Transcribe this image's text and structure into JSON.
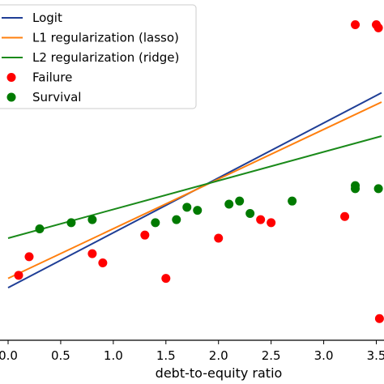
{
  "chart_data": {
    "type": "scatter",
    "xlabel": "debt-to-equity ratio",
    "ylabel": "",
    "xlim": [
      0.0,
      3.55
    ],
    "ylim": [
      -0.05,
      1.05
    ],
    "xticks": [
      "0.0",
      "0.5",
      "1.0",
      "1.5",
      "2.0",
      "2.5",
      "3.0",
      "3.5"
    ],
    "xtick_values": [
      0.0,
      0.5,
      1.0,
      1.5,
      2.0,
      2.5,
      3.0,
      3.5
    ],
    "grid": false,
    "legend_position": "top-left",
    "lines": [
      {
        "name": "Logit",
        "color": "#1f3e96",
        "x": [
          0.0,
          3.55
        ],
        "y": [
          0.12,
          0.75
        ]
      },
      {
        "name": "L1 regularization (lasso)",
        "color": "#ff7f0e",
        "x": [
          0.0,
          3.55
        ],
        "y": [
          0.15,
          0.72
        ]
      },
      {
        "name": "L2 regularization (ridge)",
        "color": "#1a8a1a",
        "x": [
          0.0,
          3.55
        ],
        "y": [
          0.28,
          0.61
        ]
      }
    ],
    "series": [
      {
        "name": "Failure",
        "color": "#ff0000",
        "x": [
          0.1,
          0.2,
          0.8,
          0.9,
          1.3,
          1.5,
          2.0,
          2.4,
          2.5,
          3.2,
          3.3,
          3.5,
          3.52,
          3.53
        ],
        "y": [
          0.16,
          0.22,
          0.23,
          0.2,
          0.29,
          0.15,
          0.28,
          0.34,
          0.33,
          0.35,
          0.97,
          0.97,
          0.96,
          0.02
        ]
      },
      {
        "name": "Survival",
        "color": "#007a00",
        "x": [
          0.3,
          0.6,
          0.8,
          1.4,
          1.6,
          1.7,
          1.8,
          2.1,
          2.2,
          2.3,
          2.7,
          3.3,
          3.3,
          3.52
        ],
        "y": [
          0.31,
          0.33,
          0.34,
          0.33,
          0.34,
          0.38,
          0.37,
          0.39,
          0.4,
          0.36,
          0.4,
          0.45,
          0.44,
          0.44
        ]
      }
    ],
    "legend": [
      "Logit",
      "L1 regularization (lasso)",
      "L2 regularization (ridge)",
      "Failure",
      "Survival"
    ]
  }
}
